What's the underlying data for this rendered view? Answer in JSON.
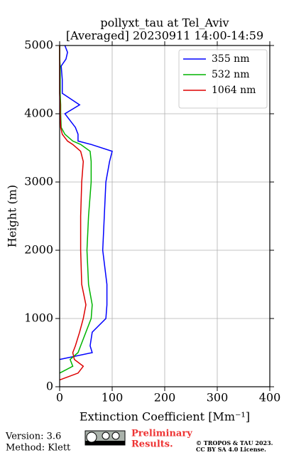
{
  "chart_data": {
    "type": "line",
    "title": "pollyxt_tau at Tel_Aviv",
    "subtitle": "[Averaged] 20230911 14:00-14:59",
    "x_label": "Extinction Coefficient [Mm⁻¹]",
    "y_label": "Height (m)",
    "y": [
      0,
      100,
      200,
      300,
      400,
      500,
      600,
      800,
      1000,
      1200,
      1500,
      2000,
      2500,
      3000,
      3300,
      3450,
      3550,
      3600,
      3700,
      3800,
      4000,
      4130,
      4300,
      4500,
      4700,
      4800,
      4900,
      5000
    ],
    "series": [
      {
        "name": "355 nm",
        "color": "#0000ff",
        "values": [
          null,
          null,
          null,
          null,
          0,
          62,
          58,
          62,
          88,
          90,
          90,
          82,
          85,
          88,
          95,
          100,
          60,
          35,
          35,
          30,
          10,
          38,
          5,
          5,
          3,
          12,
          15,
          10
        ]
      },
      {
        "name": "532 nm",
        "color": "#00b400",
        "values": [
          null,
          null,
          0,
          25,
          20,
          35,
          40,
          50,
          60,
          62,
          55,
          52,
          55,
          60,
          60,
          58,
          40,
          25,
          10,
          3,
          2,
          2,
          1,
          1,
          1,
          0,
          0,
          0
        ]
      },
      {
        "name": "1064 nm",
        "color": "#dd0000",
        "values": [
          null,
          0,
          35,
          45,
          28,
          25,
          30,
          38,
          45,
          50,
          42,
          40,
          40,
          42,
          45,
          40,
          25,
          15,
          5,
          2,
          1,
          1,
          0,
          0,
          0,
          0,
          0,
          0
        ]
      }
    ],
    "xlim": [
      0,
      400
    ],
    "xticks": [
      0,
      100,
      200,
      300,
      400
    ],
    "ylim": [
      0,
      5000
    ],
    "yticks": [
      0,
      1000,
      2000,
      3000,
      4000,
      5000
    ],
    "grid": true,
    "legend": "upper right"
  },
  "footer": {
    "version": "Version: 3.6",
    "method": "Method: Klett",
    "preliminary": "Preliminary",
    "results": "Results.",
    "copyright": "© TROPOS & TAU 2023.",
    "license": "CC BY SA 4.0 License."
  }
}
